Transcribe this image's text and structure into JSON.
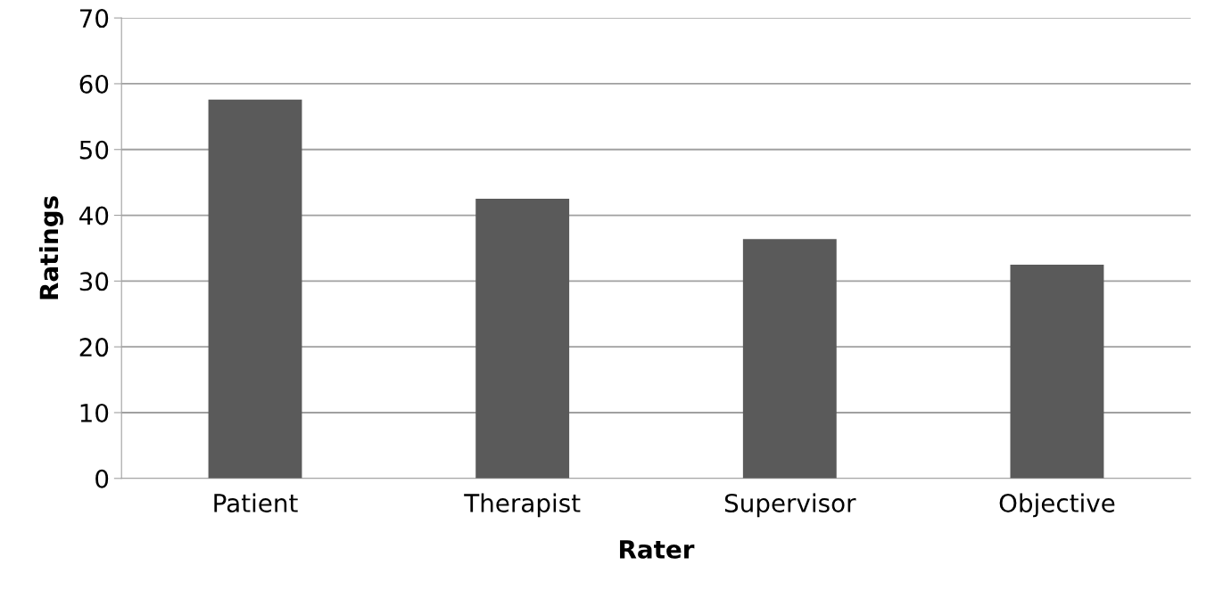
{
  "chart_data": {
    "type": "bar",
    "xlabel": "Rater",
    "ylabel": "Ratings",
    "categories": [
      "Patient",
      "Therapist",
      "Supervisor",
      "Objective"
    ],
    "values": [
      57.6,
      42.5,
      36.4,
      32.5
    ],
    "color": "#5a5a5a",
    "ylim": [
      0,
      70
    ],
    "yticks": [
      0,
      10,
      20,
      30,
      40,
      50,
      60,
      70
    ],
    "grid": "y"
  }
}
